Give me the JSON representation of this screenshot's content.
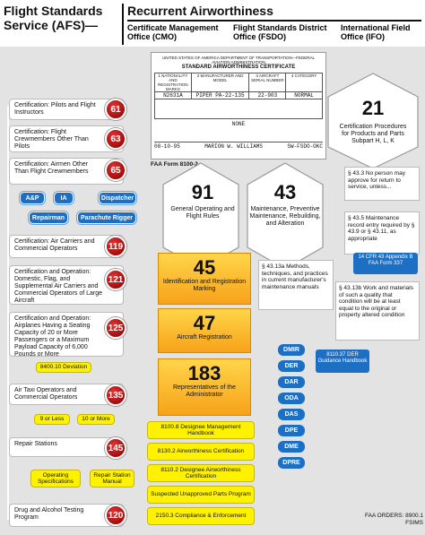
{
  "header": {
    "afs_title": "Flight Standards Service (AFS)—",
    "main_title": "Recurrent Airworthiness",
    "col_cmo": "Certificate Management Office (CMO)",
    "col_fsdo": "Flight Standards District Office (FSDO)",
    "col_ifo": "International Field Office (IFO)"
  },
  "certificate": {
    "dept": "UNITED STATES OF AMERICA DEPARTMENT OF TRANSPORTATION—FEDERAL AVIATION ADMINISTRATION",
    "title": "STANDARD AIRWORTHINESS CERTIFICATE",
    "h1": "1 NATIONALITY AND REGISTRATION MARKS",
    "h2": "2 MANUFACTURER AND MODEL",
    "h3": "3 AIRCRAFT SERIAL NUMBER",
    "h4": "4 CATEGORY",
    "v1": "N2631A",
    "v2": "PIPER PA-22-135",
    "v3": "22-903",
    "v4": "NORMAL",
    "exceptions": "NONE",
    "date": "08-10-95",
    "signer": "MARION W. WILLIAMS",
    "office": "SW-FSDO-OKC",
    "form": "FAA Form 8100-2"
  },
  "left_items": [
    {
      "text": "Certification: Pilots and Flight Instructors",
      "part": "61"
    },
    {
      "text": "Certification: Flight Crewmembers Other Than Pilots",
      "part": "63"
    },
    {
      "text": "Certification: Airmen Other Than Flight Crewmembers",
      "part": "65"
    },
    {
      "text": "Certification: Air Carriers and Commercial Operators",
      "part": "119"
    },
    {
      "text": "Certification and Operation: Domestic, Flag, and Supplemental Air Carriers and Commercial Operators of Large Aircraft",
      "part": "121"
    },
    {
      "text": "Certification and Operation: Airplanes Having a Seating Capacity of 20 or More Passengers or a Maximum Payload Capacity of 6,000 Pounds or More",
      "part": "125"
    },
    {
      "text": "Air Taxi Operators and Commercial Operators",
      "part": "135"
    },
    {
      "text": "Repair Stations",
      "part": "145"
    },
    {
      "text": "Drug and Alcohol Testing Program",
      "part": "120"
    }
  ],
  "p65_roles": [
    "A&P",
    "IA",
    "Dispatcher",
    "Repairman",
    "Parachute Rigger"
  ],
  "p125_deviation": "8400.10 Deviation",
  "p135_tags": [
    "9 or Less",
    "10 or More"
  ],
  "p145_docs": [
    "Operating Specifications",
    "Repair Station Manual"
  ],
  "hexes": {
    "h21_num": "21",
    "h21_lbl": "Certification Procedures for Products and Parts Subpart H, L, K",
    "h91_num": "91",
    "h91_lbl": "General Operating and Flight Rules",
    "h43_num": "43",
    "h43_lbl": "Maintenance, Preventive Maintenance, Rebuilding, and Alteration"
  },
  "notes_right": {
    "n1": "§ 43.3 No person may approve for return to service, unless...",
    "n2": "§ 43.5 Maintenance record entry required by § 43.9 or § 43.11, as appropriate",
    "n3_title": "14 CFR 43 Appendix B FAA Form 337",
    "n4": "§ 43.13a Methods, techniques, and practices in current manufacturer's maintenance manuals",
    "n5": "§ 43.13b Work and materials of such a quality that condition will be at least equal to the original or property altered condition"
  },
  "orange_boxes": [
    {
      "num": "45",
      "lbl": "Identification and Registration Marking"
    },
    {
      "num": "47",
      "lbl": "Aircraft Registration"
    },
    {
      "num": "183",
      "lbl": "Representatives of the Administrator"
    }
  ],
  "designees": [
    "DMIR",
    "DER",
    "DAR",
    "ODA",
    "DAS",
    "DPE",
    "DME",
    "DPRE"
  ],
  "der_handbook": "8110.37 DER Guidance Handbook",
  "yellow_docs": [
    "8100.8 Designee Management Handbook",
    "8130.2 Airworthiness Certification",
    "8110.2 Designee Airworthiness Certification",
    "Suspected Unapproved Parts Program",
    "2150.3 Compliance & Enforcement"
  ],
  "footer": "FAA ORDERS: 8900.1 FSIMS"
}
